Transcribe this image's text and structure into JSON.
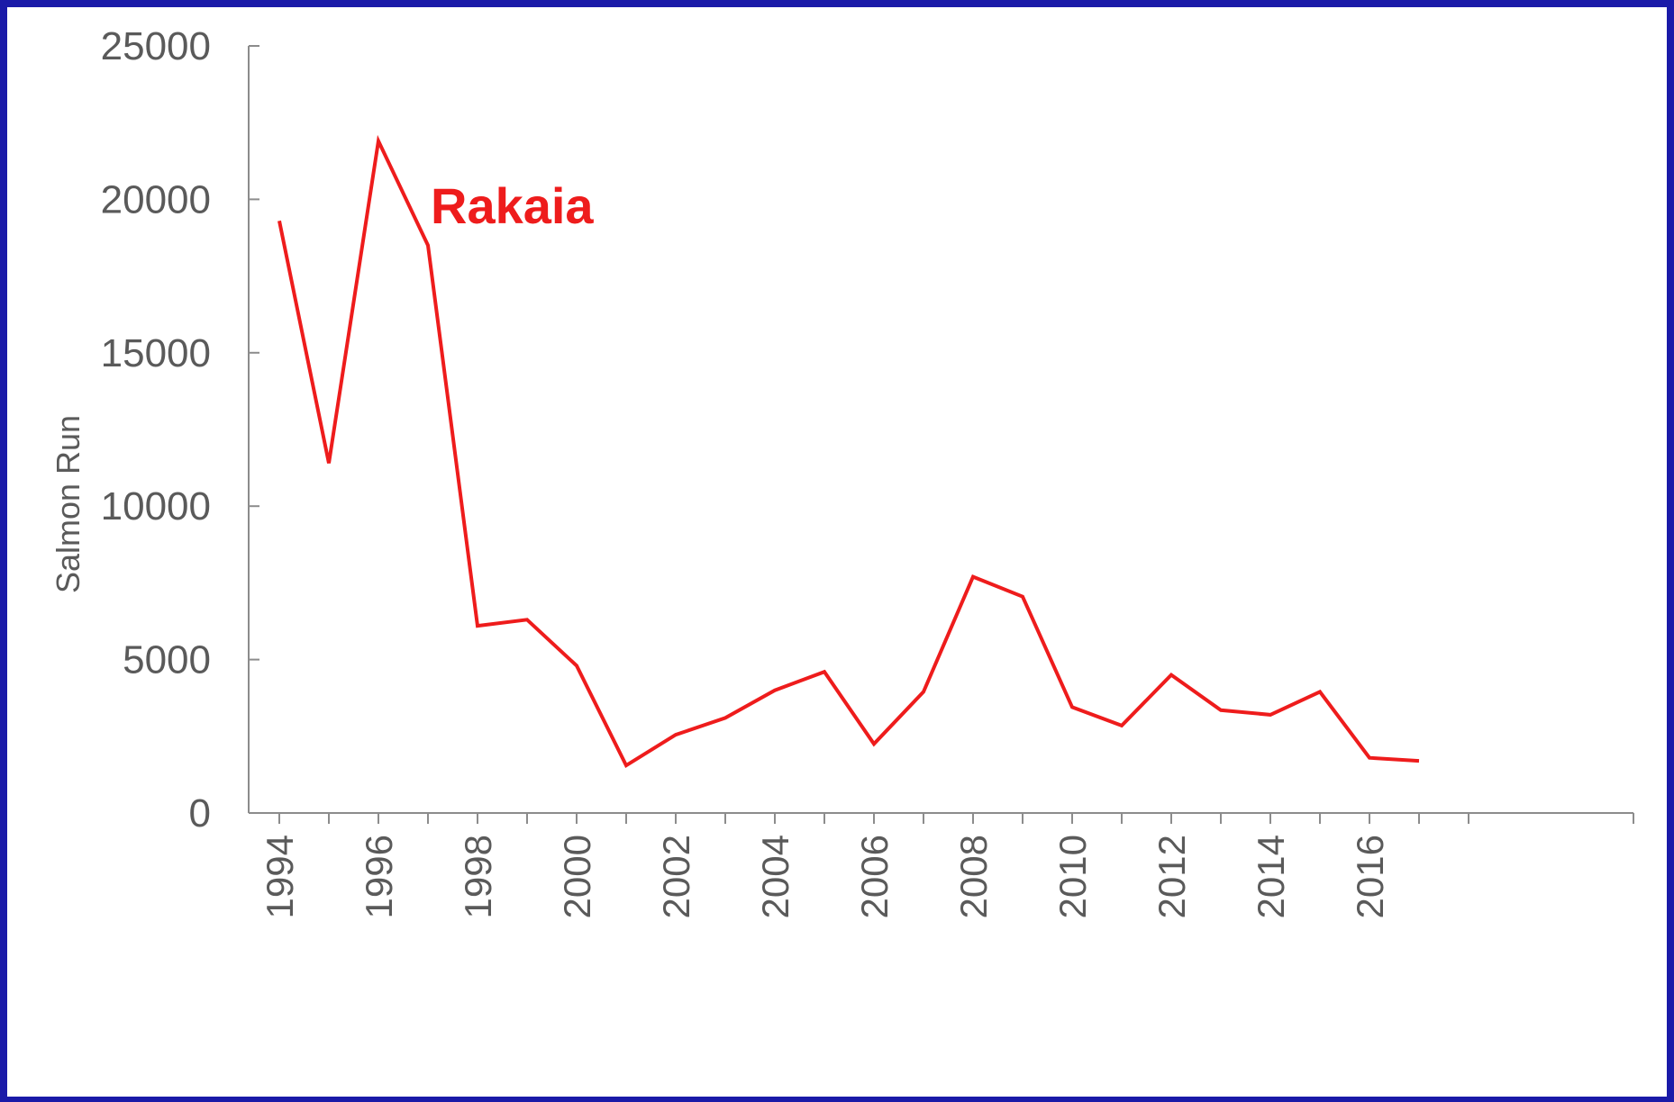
{
  "chart_data": {
    "type": "line",
    "title": "",
    "xlabel": "",
    "ylabel": "Salmon Run",
    "ylim": [
      0,
      25000
    ],
    "yticks": [
      "0",
      "5000",
      "10000",
      "15000",
      "20000",
      "25000"
    ],
    "xticks": [
      "1994",
      "1996",
      "1998",
      "2000",
      "2002",
      "2004",
      "2006",
      "2008",
      "2010",
      "2012",
      "2014",
      "2016"
    ],
    "x": [
      1994,
      1995,
      1996,
      1997,
      1998,
      1999,
      2000,
      2001,
      2002,
      2003,
      2004,
      2005,
      2006,
      2007,
      2008,
      2009,
      2010,
      2011,
      2012,
      2013,
      2014,
      2015,
      2016,
      2017
    ],
    "series": [
      {
        "name": "Rakaia",
        "color": "#ee1c1c",
        "values": [
          19300,
          11400,
          21900,
          18500,
          6100,
          6300,
          4800,
          1550,
          2550,
          3100,
          4000,
          4600,
          2250,
          3950,
          7700,
          7050,
          3450,
          2850,
          4500,
          3350,
          3200,
          3950,
          1800,
          1700
        ]
      }
    ],
    "annotation": {
      "text": "Rakaia",
      "color": "#ee1c1c"
    },
    "grid": false,
    "axis_color": "#8c8c8c",
    "text_color": "#5a5a5a"
  }
}
